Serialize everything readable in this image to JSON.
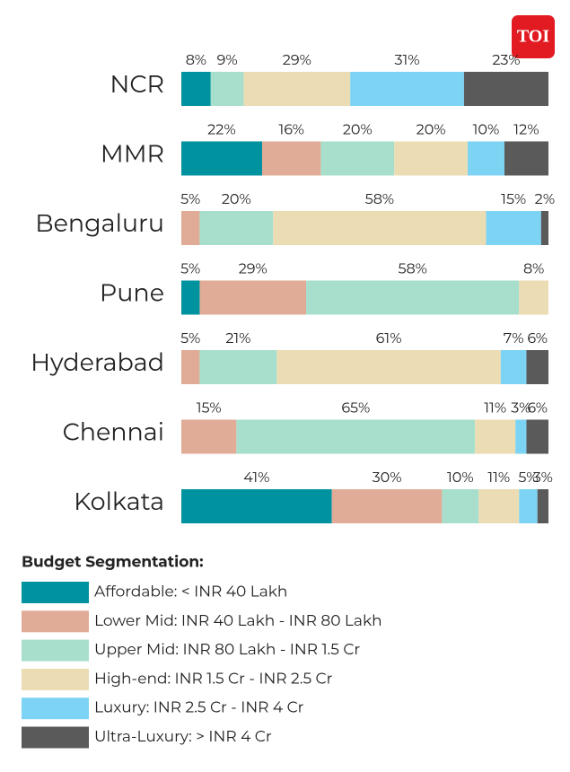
{
  "logo": "TOI",
  "chart_data": {
    "type": "stacked-bar",
    "orientation": "horizontal",
    "categories": [
      "NCR",
      "MMR",
      "Bengaluru",
      "Pune",
      "Hyderabad",
      "Chennai",
      "Kolkata"
    ],
    "xlim": [
      0,
      100
    ],
    "legend_title": "Budget Segmentation:",
    "series": [
      {
        "name": "Affordable: < INR 40 Lakh",
        "color": "#00929f",
        "values": [
          8,
          22,
          null,
          5,
          null,
          null,
          41
        ],
        "value_labels": [
          "8%",
          "22%",
          null,
          "5%",
          null,
          null,
          "41%"
        ]
      },
      {
        "name": "Lower Mid: INR 40 Lakh - INR 80 Lakh",
        "color": "#e1ac97",
        "values": [
          null,
          16,
          5,
          29,
          5,
          15,
          30
        ],
        "value_labels": [
          null,
          "16%",
          "5%",
          "29%",
          "5%",
          "15%",
          "30%"
        ]
      },
      {
        "name": "Upper Mid: INR 80 Lakh - INR 1.5 Cr",
        "color": "#a7dfcc",
        "values": [
          9,
          20,
          20,
          58,
          21,
          65,
          10
        ],
        "value_labels": [
          "9%",
          "20%",
          "20%",
          "58%",
          "21%",
          "65%",
          "10%"
        ]
      },
      {
        "name": "High-end: INR 1.5 Cr - INR 2.5 Cr",
        "color": "#ecdcb4",
        "values": [
          29,
          20,
          58,
          8,
          61,
          11,
          11
        ],
        "value_labels": [
          "29%",
          "20%",
          "58%",
          "8%",
          "61%",
          "11%",
          "11%"
        ]
      },
      {
        "name": "Luxury: INR 2.5 Cr - INR 4 Cr",
        "color": "#7dd3f3",
        "values": [
          31,
          10,
          15,
          null,
          7,
          3,
          5
        ],
        "value_labels": [
          "31%",
          "10%",
          "15%",
          null,
          "7%",
          "3%",
          "5%"
        ]
      },
      {
        "name": "Ultra-Luxury: > INR 4 Cr",
        "color": "#5a5a5a",
        "values": [
          23,
          12,
          2,
          null,
          6,
          6,
          3
        ],
        "value_labels": [
          "23%",
          "12%",
          "2%",
          null,
          "6%",
          "6%",
          "3%"
        ]
      }
    ]
  }
}
